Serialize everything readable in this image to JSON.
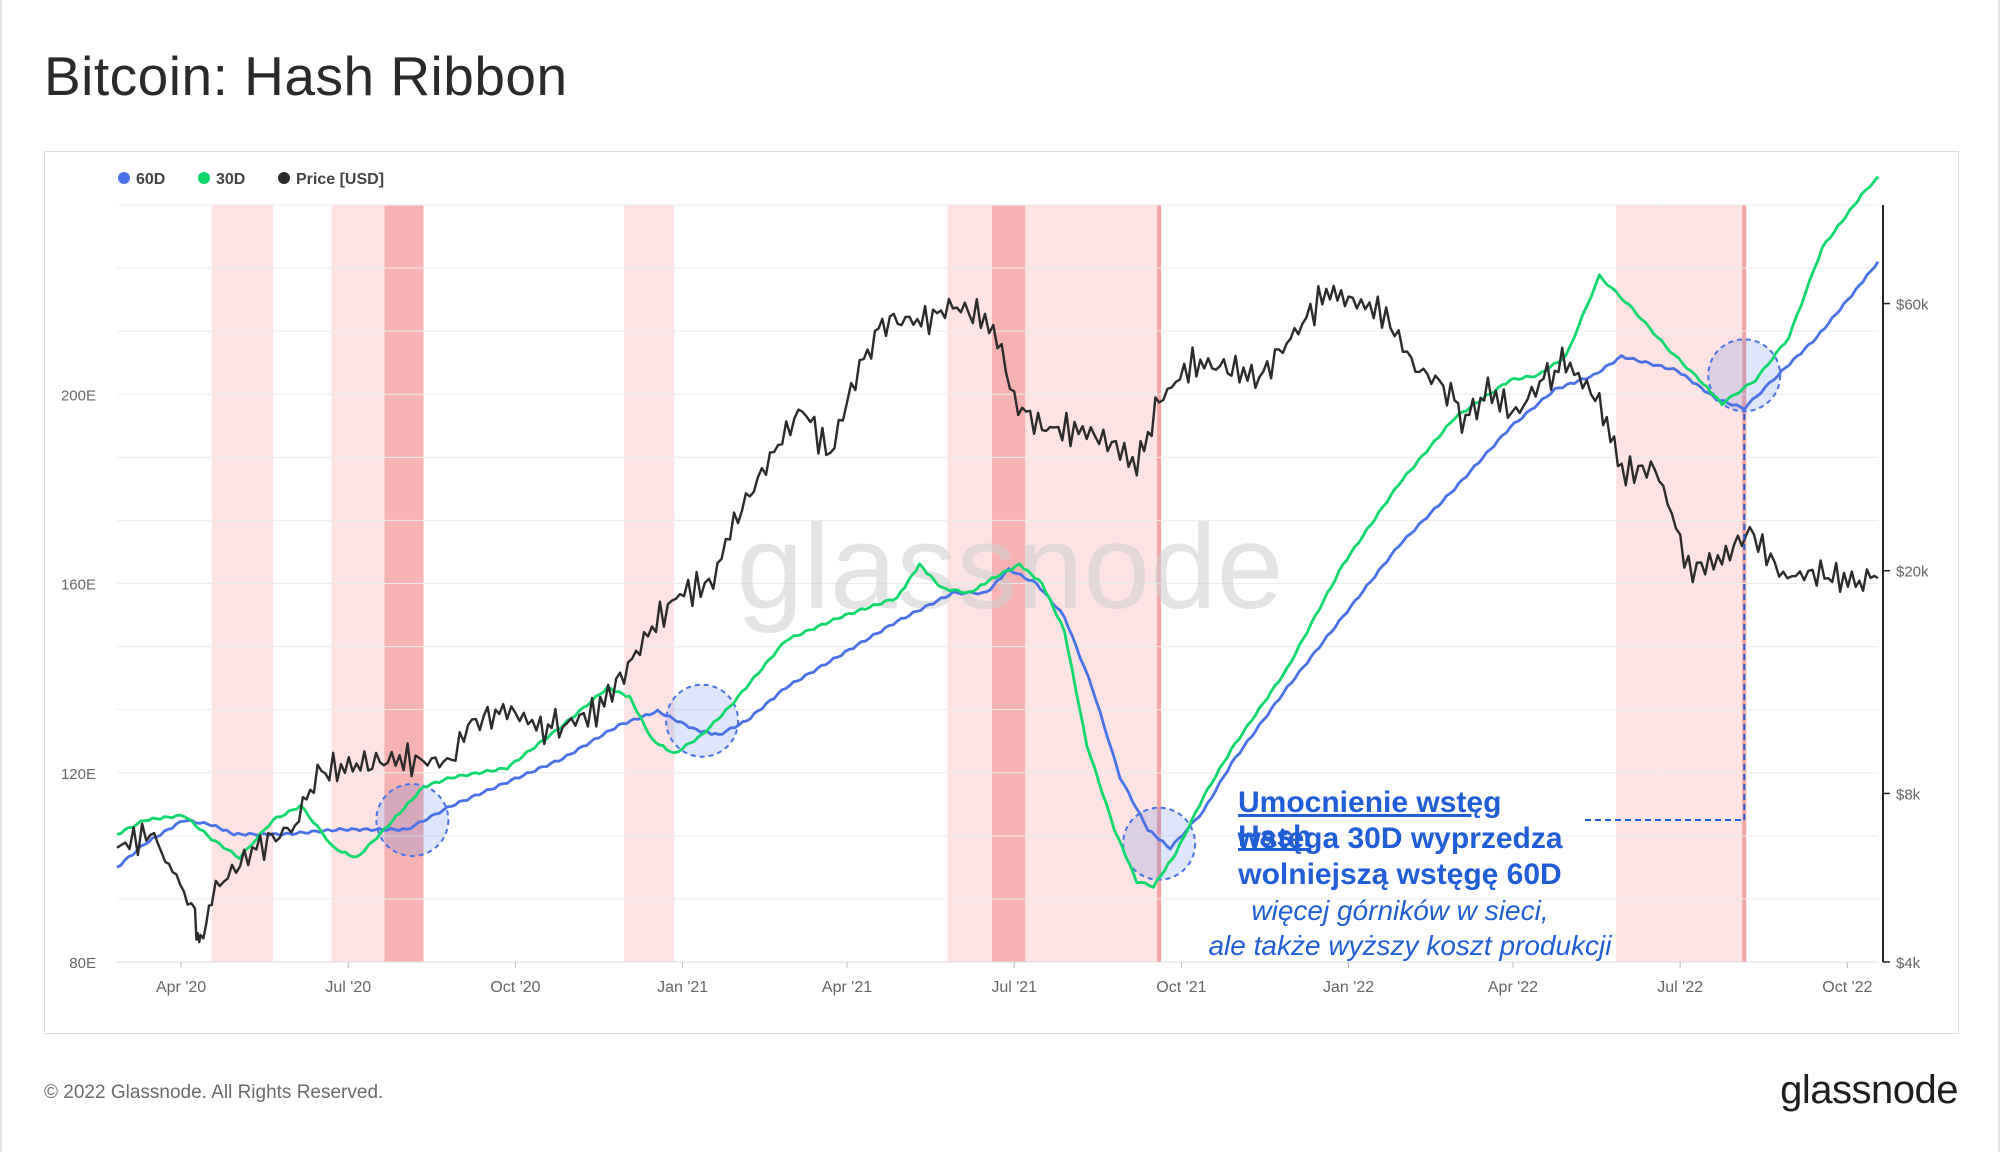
{
  "title": "Bitcoin: Hash Ribbon",
  "footer": "© 2022 Glassnode. All Rights Reserved.",
  "brand": "glassnode",
  "watermark": "glassnode",
  "chart_data": {
    "type": "line",
    "title": "Bitcoin: Hash Ribbon",
    "legend": [
      {
        "name": "60D",
        "color": "#4a72e8"
      },
      {
        "name": "30D",
        "color": "#10d86a"
      },
      {
        "name": "Price [USD]",
        "color": "#2b2b2b"
      }
    ],
    "x_tick_labels": [
      "Apr '20",
      "Jul '20",
      "Oct '20",
      "Jan '21",
      "Apr '21",
      "Jul '21",
      "Oct '21",
      "Jan '22",
      "Apr '22",
      "Jul '22",
      "Oct '22"
    ],
    "x_range_months": [
      0,
      31.6
    ],
    "y_left": {
      "ticks": [
        "80E",
        "120E",
        "160E",
        "200E"
      ],
      "tick_values": [
        80,
        120,
        160,
        200
      ],
      "range": [
        80,
        240
      ]
    },
    "y_right": {
      "ticks": [
        "$4k",
        "$8k",
        "$20k",
        "$60k"
      ],
      "tick_values": [
        4000,
        8000,
        20000,
        60000
      ],
      "scale": "log",
      "range": [
        4000,
        90000
      ]
    },
    "capitulation_bands": [
      {
        "start": 1.7,
        "end": 2.8,
        "strong": false
      },
      {
        "start": 3.85,
        "end": 4.8,
        "strong": false
      },
      {
        "start": 4.8,
        "end": 5.5,
        "strong": true
      },
      {
        "start": 9.1,
        "end": 10.0,
        "strong": false
      },
      {
        "start": 14.9,
        "end": 15.7,
        "strong": false
      },
      {
        "start": 15.7,
        "end": 16.3,
        "strong": true
      },
      {
        "start": 16.3,
        "end": 18.7,
        "strong": false
      },
      {
        "start": 26.9,
        "end": 27.7,
        "strong": false
      },
      {
        "start": 27.7,
        "end": 29.2,
        "strong": false
      }
    ],
    "band_marker_lines": [
      18.7,
      29.2
    ],
    "highlight_circles": [
      {
        "month": 5.3,
        "value": 110
      },
      {
        "month": 10.5,
        "value": 131
      },
      {
        "month": 18.7,
        "value": 105
      },
      {
        "month": 29.2,
        "value": 204
      }
    ],
    "series": [
      {
        "name": "60D",
        "axis": "left",
        "points": [
          [
            0,
            100
          ],
          [
            0.5,
            105
          ],
          [
            1.2,
            110
          ],
          [
            1.7,
            109
          ],
          [
            2.1,
            107
          ],
          [
            3,
            107
          ],
          [
            4,
            108
          ],
          [
            5.2,
            108
          ],
          [
            6,
            113
          ],
          [
            7,
            118
          ],
          [
            8,
            123
          ],
          [
            9,
            130
          ],
          [
            9.7,
            133
          ],
          [
            10.4,
            129
          ],
          [
            10.8,
            128
          ],
          [
            11.3,
            131
          ],
          [
            12,
            138
          ],
          [
            13,
            145
          ],
          [
            14,
            152
          ],
          [
            15,
            158
          ],
          [
            15.6,
            158
          ],
          [
            16,
            163
          ],
          [
            16.5,
            160
          ],
          [
            17,
            153
          ],
          [
            17.5,
            138
          ],
          [
            18,
            119
          ],
          [
            18.5,
            108
          ],
          [
            18.9,
            104
          ],
          [
            19.5,
            112
          ],
          [
            20,
            122
          ],
          [
            21,
            138
          ],
          [
            22,
            153
          ],
          [
            23,
            168
          ],
          [
            24,
            180
          ],
          [
            25,
            193
          ],
          [
            25.8,
            201
          ],
          [
            26.5,
            204
          ],
          [
            27,
            208
          ],
          [
            28,
            205
          ],
          [
            28.7,
            199
          ],
          [
            29.2,
            197
          ],
          [
            29.8,
            204
          ],
          [
            30.5,
            212
          ],
          [
            31.2,
            222
          ],
          [
            31.6,
            228
          ]
        ]
      },
      {
        "name": "30D",
        "axis": "left",
        "points": [
          [
            0,
            107
          ],
          [
            0.5,
            110
          ],
          [
            1.2,
            111
          ],
          [
            1.7,
            106
          ],
          [
            2.2,
            102
          ],
          [
            2.8,
            110
          ],
          [
            3.3,
            113
          ],
          [
            3.9,
            104
          ],
          [
            4.3,
            102
          ],
          [
            4.8,
            108
          ],
          [
            5.5,
            117
          ],
          [
            6,
            119
          ],
          [
            7,
            121
          ],
          [
            8,
            130
          ],
          [
            8.8,
            138
          ],
          [
            9.2,
            136
          ],
          [
            9.6,
            127
          ],
          [
            10,
            124
          ],
          [
            10.5,
            128
          ],
          [
            11,
            134
          ],
          [
            12,
            148
          ],
          [
            13,
            153
          ],
          [
            14,
            157
          ],
          [
            14.4,
            164
          ],
          [
            14.8,
            159
          ],
          [
            15.3,
            158
          ],
          [
            15.7,
            161
          ],
          [
            16.2,
            164
          ],
          [
            16.6,
            160
          ],
          [
            17,
            150
          ],
          [
            17.4,
            126
          ],
          [
            17.9,
            108
          ],
          [
            18.3,
            97
          ],
          [
            18.6,
            96
          ],
          [
            19,
            103
          ],
          [
            19.5,
            115
          ],
          [
            20,
            125
          ],
          [
            21,
            142
          ],
          [
            22,
            164
          ],
          [
            23,
            181
          ],
          [
            24,
            195
          ],
          [
            25,
            203
          ],
          [
            25.5,
            204
          ],
          [
            26,
            208
          ],
          [
            26.6,
            225
          ],
          [
            27.2,
            218
          ],
          [
            27.8,
            210
          ],
          [
            28.4,
            203
          ],
          [
            28.8,
            198
          ],
          [
            29.4,
            203
          ],
          [
            30,
            212
          ],
          [
            30.6,
            231
          ],
          [
            31.3,
            242
          ],
          [
            31.6,
            246
          ]
        ]
      },
      {
        "name": "Price [USD]",
        "axis": "right",
        "points": [
          [
            0,
            6400
          ],
          [
            0.6,
            6800
          ],
          [
            1.0,
            5800
          ],
          [
            1.4,
            4900
          ],
          [
            1.5,
            4200
          ],
          [
            1.7,
            5300
          ],
          [
            2.5,
            6400
          ],
          [
            3.2,
            7000
          ],
          [
            3.6,
            8700
          ],
          [
            4.3,
            9000
          ],
          [
            5,
            9200
          ],
          [
            6,
            9100
          ],
          [
            6.3,
            10600
          ],
          [
            7,
            11300
          ],
          [
            7.6,
            10500
          ],
          [
            8,
            10600
          ],
          [
            8.6,
            11200
          ],
          [
            9.1,
            13100
          ],
          [
            9.6,
            15800
          ],
          [
            10.1,
            18200
          ],
          [
            10.7,
            19100
          ],
          [
            11,
            23500
          ],
          [
            11.5,
            29000
          ],
          [
            12.3,
            39000
          ],
          [
            12.8,
            32000
          ],
          [
            13.4,
            48000
          ],
          [
            13.8,
            56000
          ],
          [
            14.5,
            56000
          ],
          [
            15,
            59500
          ],
          [
            15.5,
            57000
          ],
          [
            15.8,
            52000
          ],
          [
            16.1,
            40000
          ],
          [
            16.6,
            36000
          ],
          [
            17.4,
            35500
          ],
          [
            18,
            33000
          ],
          [
            18.3,
            30500
          ],
          [
            18.7,
            40000
          ],
          [
            19.3,
            47000
          ],
          [
            20,
            46000
          ],
          [
            20.5,
            44000
          ],
          [
            21.2,
            54000
          ],
          [
            21.7,
            63000
          ],
          [
            22.1,
            61000
          ],
          [
            22.7,
            58000
          ],
          [
            23.3,
            46000
          ],
          [
            23.8,
            43000
          ],
          [
            24.2,
            37000
          ],
          [
            24.6,
            42000
          ],
          [
            25.1,
            38000
          ],
          [
            25.6,
            44000
          ],
          [
            26,
            47000
          ],
          [
            26.6,
            40000
          ],
          [
            27,
            30000
          ],
          [
            27.6,
            30500
          ],
          [
            28.2,
            20000
          ],
          [
            28.8,
            21000
          ],
          [
            29.3,
            23500
          ],
          [
            29.9,
            19500
          ],
          [
            30.5,
            19800
          ],
          [
            31.2,
            19100
          ],
          [
            31.6,
            19400
          ]
        ]
      }
    ]
  },
  "annotation": {
    "line1": "Umocnienie wstęg Hash",
    "line2": "wstęga 30D wyprzedza",
    "line3": "wolniejszą wstęgę 60D",
    "line4": "więcej górników w sieci,",
    "line5": "ale także wyższy koszt produkcji"
  },
  "colors": {
    "band": "#fde3e3",
    "band_strong": "#f7b3b3",
    "band_marker": "#f4a3a3",
    "circle_fill": "#4a72e8",
    "annotation": "#1f5ed6"
  }
}
